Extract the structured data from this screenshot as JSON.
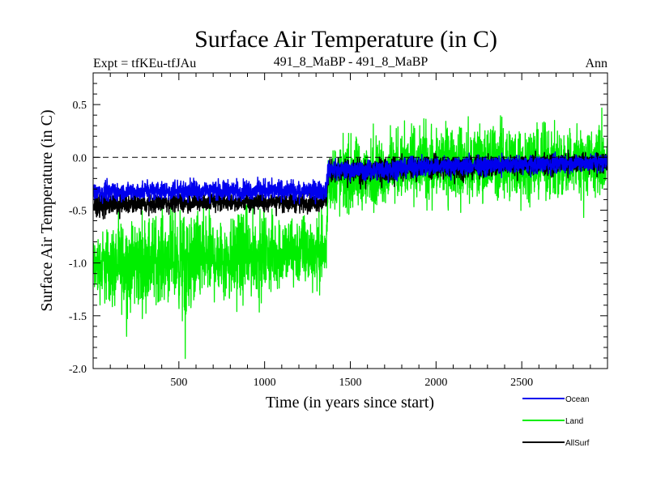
{
  "chart_data": {
    "type": "line",
    "title": "Surface Air Temperature (in C)",
    "subtitle_left": "Expt = tfKEu-tfJAu",
    "subtitle_center": "491_8_MaBP - 491_8_MaBP",
    "subtitle_right": "Ann",
    "xlabel": "Time (in years since start)",
    "ylabel": "Surface Air Temperature (in C)",
    "xlim": [
      0,
      3000
    ],
    "ylim": [
      -2.0,
      0.8
    ],
    "xticks": [
      500,
      1000,
      1500,
      2000,
      2500
    ],
    "xtick_labels": [
      "500",
      "1000",
      "1500",
      "2000",
      "2500"
    ],
    "yticks": [
      -2.0,
      -1.5,
      -1.0,
      -0.5,
      0.0,
      0.5
    ],
    "ytick_labels": [
      "-2.0",
      "-1.5",
      "-1.0",
      "-0.5",
      "0.0",
      "0.5"
    ],
    "reference_line": {
      "y": 0.0,
      "style": "dashed"
    },
    "legend_placement": "bottom-right, below plot",
    "series": [
      {
        "name": "Land",
        "color": "#00ee00",
        "x": [
          0,
          100,
          200,
          300,
          400,
          500,
          540,
          600,
          700,
          800,
          900,
          1000,
          1100,
          1200,
          1300,
          1360,
          1370,
          1400,
          1500,
          1600,
          1700,
          1800,
          1900,
          2000,
          2100,
          2200,
          2300,
          2400,
          2500,
          2600,
          2700,
          2800,
          2900,
          3000
        ],
        "mean": [
          -1.05,
          -1.0,
          -1.0,
          -1.0,
          -0.95,
          -0.98,
          -1.0,
          -0.95,
          -0.95,
          -0.93,
          -0.92,
          -0.92,
          -0.9,
          -0.9,
          -0.92,
          -0.9,
          -0.2,
          -0.2,
          -0.22,
          -0.2,
          -0.15,
          -0.12,
          -0.1,
          -0.12,
          -0.05,
          -0.1,
          -0.08,
          -0.05,
          -0.08,
          -0.05,
          -0.05,
          -0.02,
          -0.05,
          -0.05
        ],
        "max": [
          -0.6,
          -0.5,
          -0.4,
          -0.35,
          -0.35,
          -0.3,
          -0.4,
          -0.3,
          -0.35,
          -0.35,
          -0.35,
          -0.4,
          -0.4,
          -0.35,
          -0.4,
          -0.45,
          0.25,
          0.3,
          0.35,
          0.3,
          0.35,
          0.45,
          0.5,
          0.55,
          0.4,
          0.45,
          0.55,
          0.5,
          0.5,
          0.45,
          0.4,
          0.45,
          0.4,
          0.5
        ],
        "min": [
          -1.45,
          -1.6,
          -1.7,
          -1.6,
          -1.5,
          -1.6,
          -1.93,
          -1.6,
          -1.5,
          -1.6,
          -1.5,
          -1.45,
          -1.4,
          -1.35,
          -1.35,
          -1.35,
          -0.6,
          -0.7,
          -0.65,
          -0.6,
          -0.55,
          -0.5,
          -0.5,
          -0.5,
          -0.5,
          -0.55,
          -0.5,
          -0.55,
          -0.5,
          -0.5,
          -0.55,
          -0.6,
          -0.55,
          -0.5
        ]
      },
      {
        "name": "AllSurf",
        "color": "#000000",
        "x": [
          0,
          200,
          400,
          600,
          800,
          1000,
          1200,
          1360,
          1370,
          1600,
          1800,
          2000,
          2200,
          2400,
          2600,
          2800,
          3000
        ],
        "mean": [
          -0.45,
          -0.45,
          -0.43,
          -0.43,
          -0.42,
          -0.42,
          -0.42,
          -0.42,
          -0.12,
          -0.13,
          -0.1,
          -0.08,
          -0.09,
          -0.07,
          -0.06,
          -0.05,
          -0.04
        ],
        "max": [
          -0.3,
          -0.3,
          -0.3,
          -0.28,
          -0.3,
          -0.3,
          -0.3,
          -0.32,
          0.02,
          0.03,
          0.05,
          0.07,
          0.05,
          0.05,
          0.06,
          0.07,
          0.08
        ],
        "min": [
          -0.62,
          -0.58,
          -0.56,
          -0.55,
          -0.55,
          -0.55,
          -0.56,
          -0.55,
          -0.3,
          -0.3,
          -0.27,
          -0.25,
          -0.25,
          -0.22,
          -0.22,
          -0.2,
          -0.2
        ]
      },
      {
        "name": "Ocean",
        "color": "#0000ee",
        "x": [
          0,
          200,
          400,
          600,
          800,
          1000,
          1200,
          1360,
          1370,
          1600,
          1800,
          2000,
          2200,
          2400,
          2600,
          2800,
          3000
        ],
        "mean": [
          -0.33,
          -0.33,
          -0.32,
          -0.32,
          -0.32,
          -0.32,
          -0.32,
          -0.32,
          -0.11,
          -0.12,
          -0.09,
          -0.08,
          -0.08,
          -0.07,
          -0.06,
          -0.05,
          -0.04
        ],
        "max": [
          -0.2,
          -0.2,
          -0.18,
          -0.16,
          -0.17,
          -0.16,
          -0.18,
          -0.18,
          0.0,
          0.0,
          0.03,
          0.05,
          0.04,
          0.04,
          0.05,
          0.05,
          0.06
        ],
        "min": [
          -0.46,
          -0.44,
          -0.44,
          -0.44,
          -0.43,
          -0.43,
          -0.44,
          -0.44,
          -0.25,
          -0.26,
          -0.23,
          -0.22,
          -0.21,
          -0.2,
          -0.2,
          -0.18,
          -0.18
        ]
      }
    ],
    "legend": [
      "Ocean",
      "Land",
      "AllSurf"
    ],
    "legend_colors": [
      "#0000ee",
      "#00ee00",
      "#000000"
    ]
  }
}
